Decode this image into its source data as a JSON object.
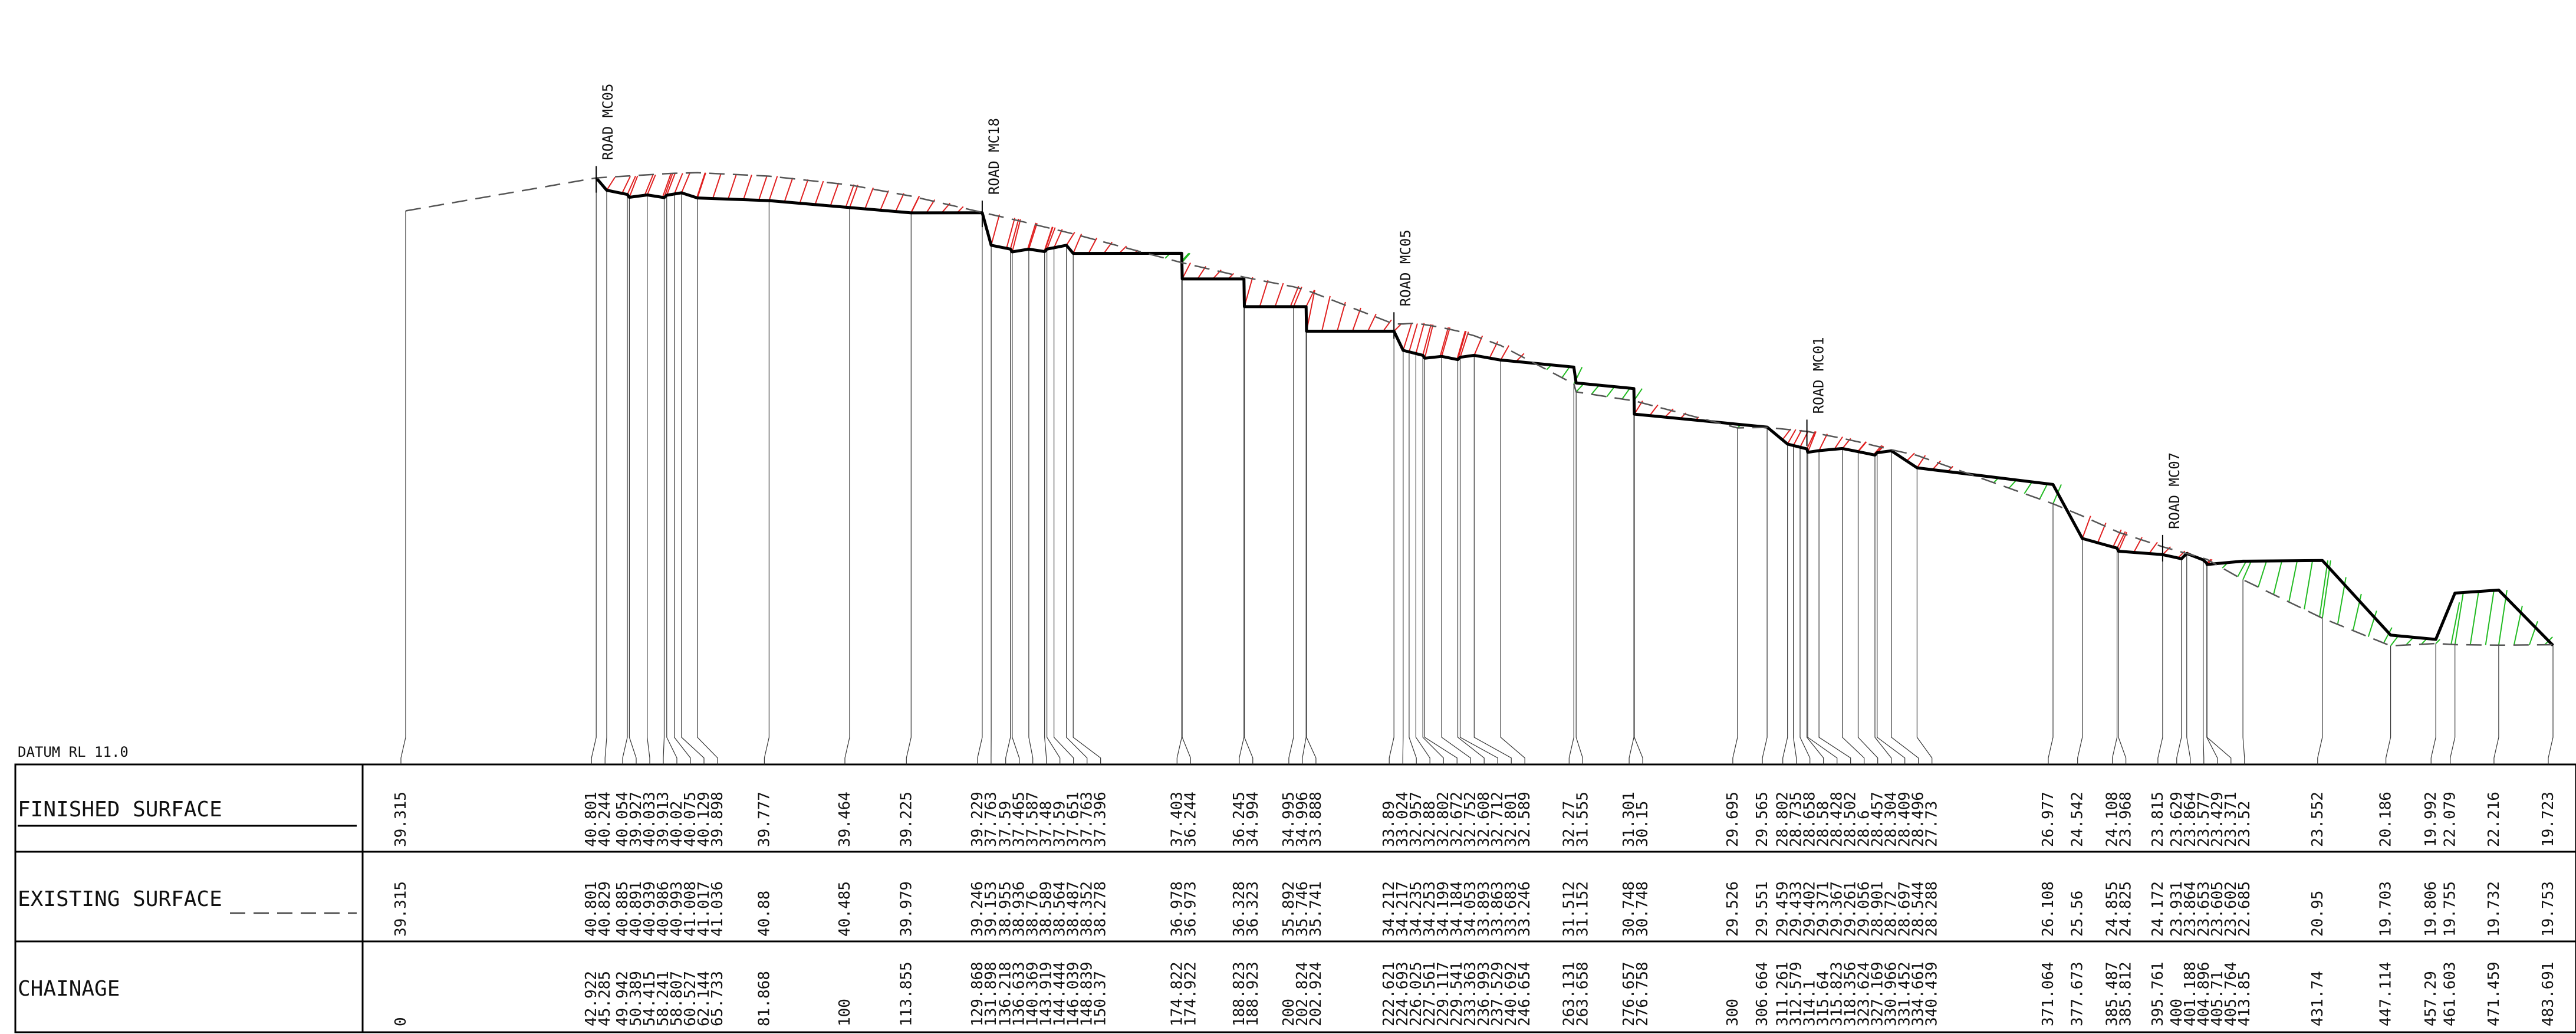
{
  "datum": "DATUM RL 11.0",
  "rows": {
    "finished": "FINISHED SURFACE",
    "existing": "EXISTING SURFACE",
    "chainage": "CHAINAGE"
  },
  "roads": [
    {
      "label": "ROAD MC05",
      "chainage": 42.922
    },
    {
      "label": "ROAD MC18",
      "chainage": 129.868
    },
    {
      "label": "ROAD MC05",
      "chainage": 222.621
    },
    {
      "label": "ROAD MC01",
      "chainage": 315.64
    },
    {
      "label": "ROAD MC07",
      "chainage": 395.761
    }
  ],
  "colors": {
    "finished_line": "#000000",
    "existing_line": "#555555",
    "cut_hatch": "#e02020",
    "fill_hatch": "#22bb22"
  },
  "stations": [
    {
      "ch": "0",
      "fs": "39.315",
      "es": "39.315"
    },
    {
      "ch": "42.922",
      "fs": "40.801",
      "es": "40.801"
    },
    {
      "ch": "45.285",
      "fs": "40.244",
      "es": "40.829"
    },
    {
      "ch": "49.942",
      "fs": "40.054",
      "es": "40.885"
    },
    {
      "ch": "50.389",
      "fs": "39.927",
      "es": "40.891"
    },
    {
      "ch": "54.415",
      "fs": "40.033",
      "es": "40.939"
    },
    {
      "ch": "58.241",
      "fs": "39.913",
      "es": "40.986"
    },
    {
      "ch": "58.807",
      "fs": "40.02",
      "es": "40.993"
    },
    {
      "ch": "60.527",
      "fs": "40.075",
      "es": "41.008"
    },
    {
      "ch": "62.144",
      "fs": "40.129",
      "es": "41.017"
    },
    {
      "ch": "65.733",
      "fs": "39.898",
      "es": "41.036"
    },
    {
      "ch": "81.868",
      "fs": "39.777",
      "es": "40.88"
    },
    {
      "ch": "100",
      "fs": "39.464",
      "es": "40.485"
    },
    {
      "ch": "113.855",
      "fs": "39.225",
      "es": "39.979"
    },
    {
      "ch": "129.868",
      "fs": "39.229",
      "es": "39.246"
    },
    {
      "ch": "131.898",
      "fs": "37.763",
      "es": "39.153"
    },
    {
      "ch": "136.218",
      "fs": "37.59",
      "es": "38.955"
    },
    {
      "ch": "136.633",
      "fs": "37.465",
      "es": "38.936"
    },
    {
      "ch": "140.369",
      "fs": "37.587",
      "es": "38.76"
    },
    {
      "ch": "143.919",
      "fs": "37.48",
      "es": "38.589"
    },
    {
      "ch": "144.444",
      "fs": "37.59",
      "es": "38.564"
    },
    {
      "ch": "146.039",
      "fs": "37.651",
      "es": "38.487"
    },
    {
      "ch": "148.839",
      "fs": "37.763",
      "es": "38.352"
    },
    {
      "ch": "150.37",
      "fs": "37.396",
      "es": "38.278"
    },
    {
      "ch": "174.822",
      "fs": "37.403",
      "es": "36.978"
    },
    {
      "ch": "174.922",
      "fs": "36.244",
      "es": "36.973"
    },
    {
      "ch": "188.823",
      "fs": "36.245",
      "es": "36.328"
    },
    {
      "ch": "188.923",
      "fs": "34.994",
      "es": "36.323"
    },
    {
      "ch": "200",
      "fs": "34.995",
      "es": "35.892"
    },
    {
      "ch": "202.824",
      "fs": "34.996",
      "es": "35.746"
    },
    {
      "ch": "202.924",
      "fs": "33.888",
      "es": "35.741"
    },
    {
      "ch": "222.621",
      "fs": "33.89",
      "es": "34.212"
    },
    {
      "ch": "224.693",
      "fs": "33.024",
      "es": "34.217"
    },
    {
      "ch": "226.025",
      "fs": "32.957",
      "es": "34.235"
    },
    {
      "ch": "227.561",
      "fs": "32.88",
      "es": "34.253"
    },
    {
      "ch": "229.117",
      "fs": "32.802",
      "es": "34.199"
    },
    {
      "ch": "229.541",
      "fs": "32.672",
      "es": "34.184"
    },
    {
      "ch": "233.363",
      "fs": "32.752",
      "es": "34.053"
    },
    {
      "ch": "236.993",
      "fs": "32.608",
      "es": "33.893"
    },
    {
      "ch": "237.529",
      "fs": "32.712",
      "es": "33.863"
    },
    {
      "ch": "240.692",
      "fs": "32.801",
      "es": "33.683"
    },
    {
      "ch": "246.654",
      "fs": "32.589",
      "es": "33.246"
    },
    {
      "ch": "263.131",
      "fs": "32.27",
      "es": "31.512"
    },
    {
      "ch": "263.658",
      "fs": "31.555",
      "es": "31.152"
    },
    {
      "ch": "276.657",
      "fs": "31.301",
      "es": "30.748"
    },
    {
      "ch": "276.758",
      "fs": "30.15",
      "es": "30.748"
    },
    {
      "ch": "300",
      "fs": "29.695",
      "es": "29.526"
    },
    {
      "ch": "306.664",
      "fs": "29.565",
      "es": "29.551"
    },
    {
      "ch": "311.261",
      "fs": "28.802",
      "es": "29.459"
    },
    {
      "ch": "312.579",
      "fs": "28.735",
      "es": "29.433"
    },
    {
      "ch": "314.1",
      "fs": "28.658",
      "es": "29.402"
    },
    {
      "ch": "315.64",
      "fs": "28.58",
      "es": "29.371"
    },
    {
      "ch": "315.823",
      "fs": "28.428",
      "es": "29.367"
    },
    {
      "ch": "318.356",
      "fs": "28.502",
      "es": "29.261"
    },
    {
      "ch": "323.624",
      "fs": "28.6",
      "es": "29.056"
    },
    {
      "ch": "327.169",
      "fs": "28.457",
      "es": "28.901"
    },
    {
      "ch": "330.966",
      "fs": "28.304",
      "es": "28.72"
    },
    {
      "ch": "331.452",
      "fs": "28.409",
      "es": "28.697"
    },
    {
      "ch": "334.661",
      "fs": "28.496",
      "es": "28.544"
    },
    {
      "ch": "340.439",
      "fs": "27.73",
      "es": "28.288"
    },
    {
      "ch": "371.064",
      "fs": "26.977",
      "es": "26.108"
    },
    {
      "ch": "377.673",
      "fs": "24.542",
      "es": "25.56"
    },
    {
      "ch": "385.487",
      "fs": "24.108",
      "es": "24.855"
    },
    {
      "ch": "385.812",
      "fs": "23.968",
      "es": "24.825"
    },
    {
      "ch": "395.761",
      "fs": "23.815",
      "es": "24.172"
    },
    {
      "ch": "400",
      "fs": "23.629",
      "es": "23.931"
    },
    {
      "ch": "401.188",
      "fs": "23.864",
      "es": "23.864"
    },
    {
      "ch": "404.896",
      "fs": "23.577",
      "es": "23.653"
    },
    {
      "ch": "405.71",
      "fs": "23.429",
      "es": "23.605"
    },
    {
      "ch": "405.764",
      "fs": "23.371",
      "es": "23.602"
    },
    {
      "ch": "413.85",
      "fs": "23.52",
      "es": "22.685"
    },
    {
      "ch": "431.74",
      "fs": "23.552",
      "es": "20.95"
    },
    {
      "ch": "447.114",
      "fs": "20.186",
      "es": "19.703"
    },
    {
      "ch": "457.29",
      "fs": "19.992",
      "es": "19.806"
    },
    {
      "ch": "461.603",
      "fs": "22.079",
      "es": "19.755"
    },
    {
      "ch": "471.459",
      "fs": "22.216",
      "es": "19.732"
    },
    {
      "ch": "483.691",
      "fs": "19.723",
      "es": "19.753"
    }
  ]
}
